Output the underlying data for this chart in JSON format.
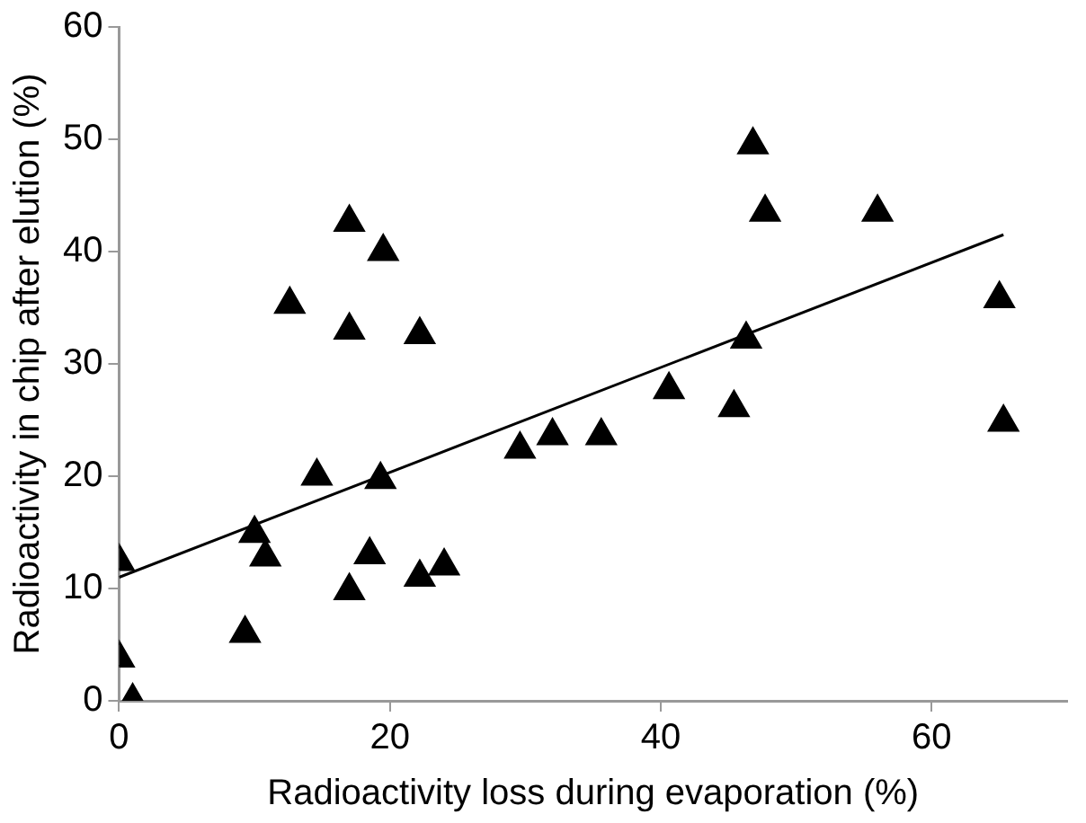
{
  "chart_data": {
    "type": "scatter",
    "xlabel": "Radioactivity loss during evaporation (%)",
    "ylabel": "Radioactivity in chip after elution (%)",
    "xlim": [
      0,
      70
    ],
    "ylim": [
      0,
      60
    ],
    "xticks": [
      0,
      20,
      40,
      60
    ],
    "yticks": [
      0,
      10,
      20,
      30,
      40,
      50,
      60
    ],
    "grid": false,
    "legend": false,
    "marker": "triangle",
    "series": [
      {
        "color": "#000000",
        "x": [
          0,
          0,
          1,
          9.3,
          10,
          10.8,
          12.6,
          14.6,
          17,
          17,
          17,
          18.5,
          19.3,
          19.5,
          22.2,
          22.2,
          24,
          29.6,
          32,
          35.6,
          40.6,
          45.4,
          46.3,
          46.8,
          47.7,
          56,
          65,
          65.3
        ],
        "values": [
          12.4,
          3.8,
          0,
          6,
          14.9,
          12.8,
          35.3,
          20,
          9.8,
          42.6,
          33,
          13,
          19.7,
          40,
          32.6,
          11,
          12,
          22.4,
          23.6,
          23.6,
          27.7,
          26.1,
          32.2,
          49.5,
          43.5,
          43.5,
          35.8,
          24.8
        ]
      },
      {
        "type": "line",
        "color": "#000000",
        "marker": "none",
        "line_style": "solid",
        "x": [
          0,
          65.3
        ],
        "values": [
          11,
          41.5
        ]
      }
    ]
  }
}
